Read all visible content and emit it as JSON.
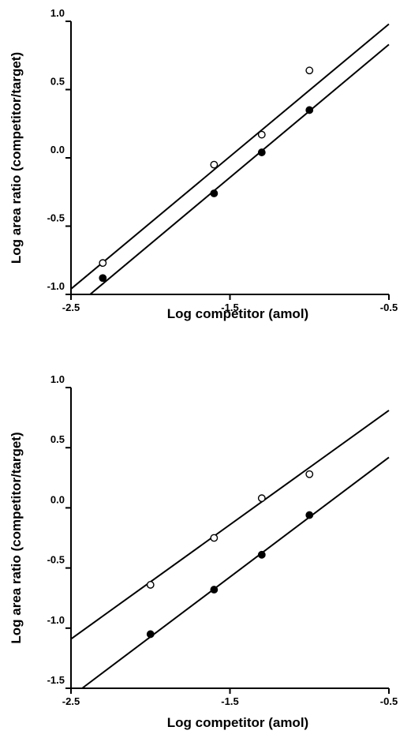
{
  "chart_data": [
    {
      "type": "scatter",
      "title": "",
      "xlabel": "Log competitor (amol)",
      "ylabel": "Log area ratio (competitor/target)",
      "xlim": [
        -2.5,
        -0.5
      ],
      "ylim": [
        -1.0,
        1.0
      ],
      "x_ticks": [
        "-2.5",
        "-1.5",
        "-0.5"
      ],
      "y_ticks": [
        "-1.0",
        "-0.5",
        "0.0",
        "0.5",
        "1.0"
      ],
      "grid": false,
      "legend": "none",
      "series": [
        {
          "marker": "open-circle",
          "x": [
            -2.3,
            -1.6,
            -1.3,
            -1.0
          ],
          "y": [
            -0.77,
            -0.05,
            0.17,
            0.64
          ],
          "fit_line": {
            "x": [
              -2.5,
              -0.5
            ],
            "y": [
              -0.96,
              0.98
            ]
          }
        },
        {
          "marker": "filled-circle",
          "x": [
            -2.3,
            -1.6,
            -1.3,
            -1.0
          ],
          "y": [
            -0.88,
            -0.26,
            0.04,
            0.35
          ],
          "fit_line": {
            "x": [
              -2.38,
              -0.5
            ],
            "y": [
              -1.0,
              0.83
            ]
          }
        }
      ]
    },
    {
      "type": "scatter",
      "title": "",
      "xlabel": "Log competitor (amol)",
      "ylabel": "Log area ratio (competitor/target)",
      "xlim": [
        -2.5,
        -0.5
      ],
      "ylim": [
        -1.5,
        1.0
      ],
      "x_ticks": [
        "-2.5",
        "-1.5",
        "-0.5"
      ],
      "y_ticks": [
        "-1.5",
        "-1.0",
        "-0.5",
        "0.0",
        "0.5",
        "1.0"
      ],
      "grid": false,
      "legend": "none",
      "series": [
        {
          "marker": "open-circle",
          "x": [
            -2.0,
            -1.6,
            -1.3,
            -1.0
          ],
          "y": [
            -0.64,
            -0.25,
            0.08,
            0.28
          ],
          "fit_line": {
            "x": [
              -2.5,
              -0.5
            ],
            "y": [
              -1.09,
              0.81
            ]
          }
        },
        {
          "marker": "filled-circle",
          "x": [
            -2.0,
            -1.6,
            -1.3,
            -1.0
          ],
          "y": [
            -1.05,
            -0.68,
            -0.39,
            -0.06
          ],
          "fit_line": {
            "x": [
              -2.43,
              -0.5
            ],
            "y": [
              -1.5,
              0.42
            ]
          }
        }
      ]
    }
  ]
}
